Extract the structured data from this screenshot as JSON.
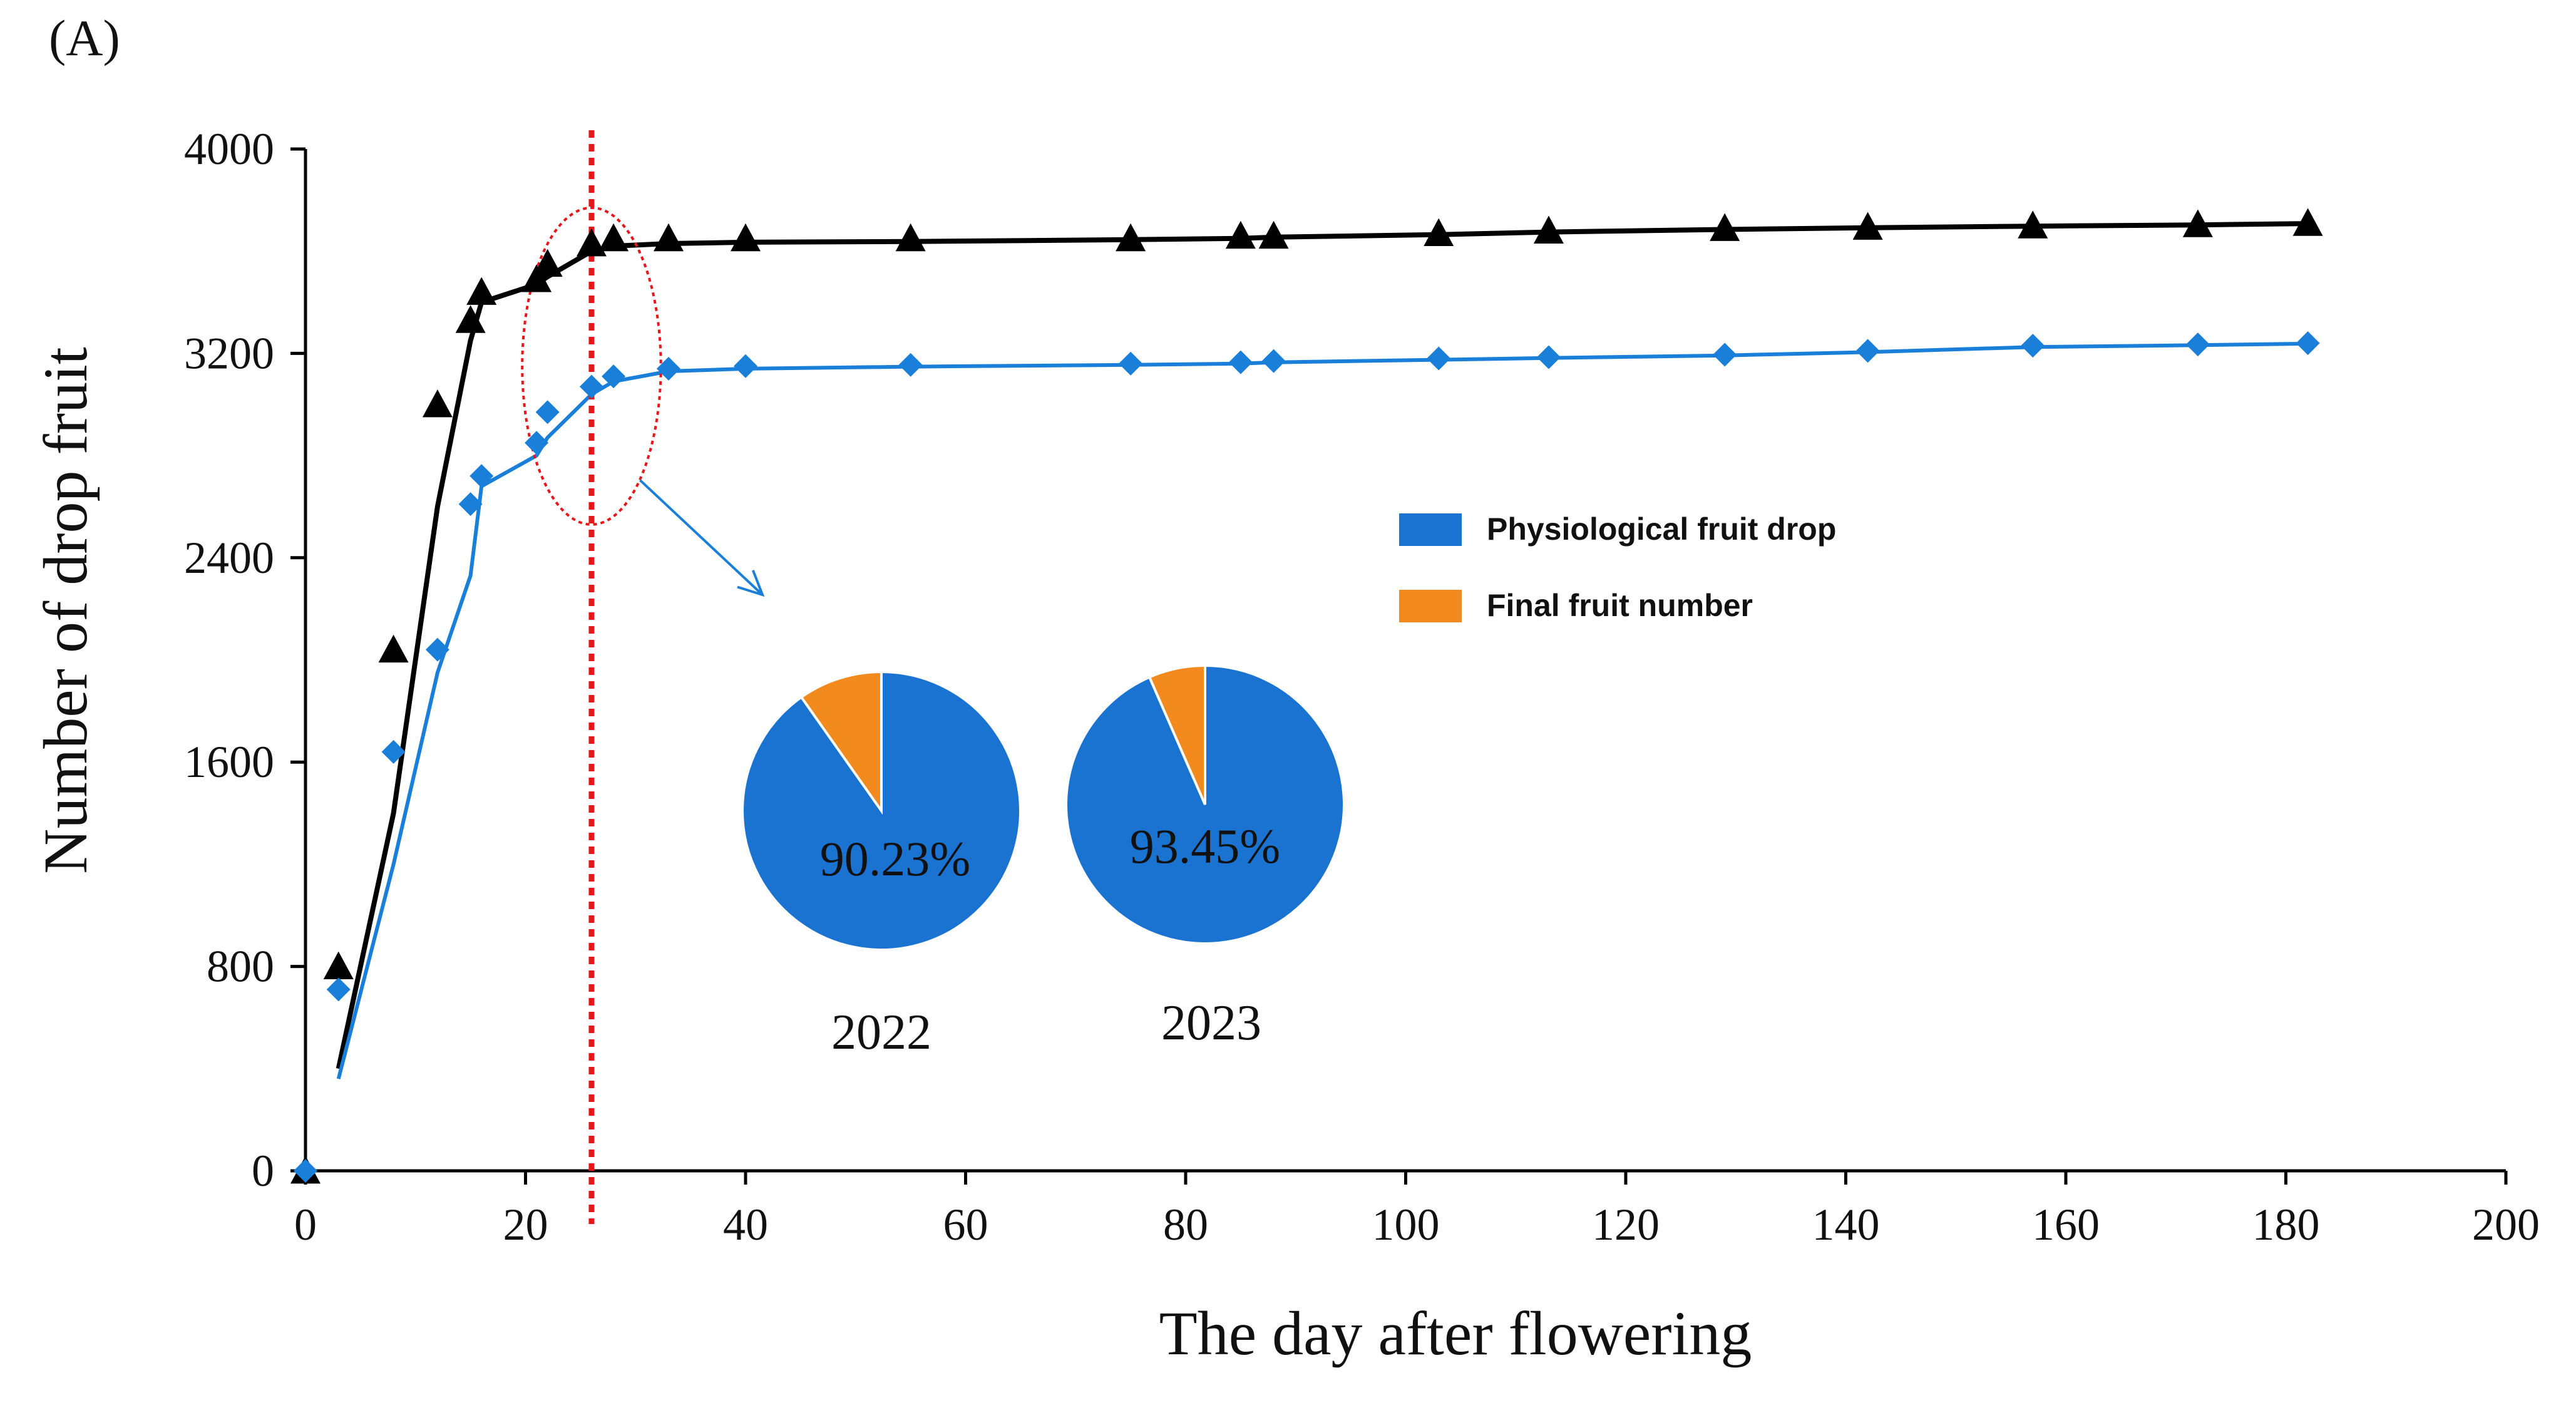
{
  "panel_label": "(A)",
  "colors": {
    "series_2023": "#000000",
    "series_2022": "#1a7fd8",
    "physiological": "#1a73d0",
    "final": "#f28a1e",
    "cutoff_line": "#e8161b"
  },
  "chart_data": {
    "type": "line",
    "title": "",
    "xlabel": "The day after flowering",
    "ylabel": "Number of drop fruit",
    "xlim": [
      0,
      200
    ],
    "ylim": [
      0,
      4000
    ],
    "xticks": [
      0,
      20,
      40,
      60,
      80,
      100,
      120,
      140,
      160,
      180,
      200
    ],
    "yticks": [
      0,
      800,
      1600,
      2400,
      3200,
      4000
    ],
    "grid": false,
    "cutoff_x": 26,
    "highlight_ellipse": {
      "x_center": 26,
      "y_center": 3150,
      "x_radius": 6.3,
      "y_radius": 620
    },
    "series": [
      {
        "name": "2023",
        "marker": "triangle",
        "color": "#000000",
        "x": [
          0,
          3,
          8,
          12,
          15,
          16,
          21,
          22,
          26,
          28,
          33,
          40,
          55,
          75,
          85,
          88,
          103,
          113,
          129,
          142,
          157,
          172,
          182
        ],
        "y": [
          0,
          800,
          2040,
          3000,
          3330,
          3440,
          3490,
          3550,
          3630,
          3650,
          3650,
          3650,
          3650,
          3650,
          3660,
          3660,
          3670,
          3680,
          3690,
          3695,
          3700,
          3705,
          3710
        ],
        "fit_x": [
          3,
          8,
          12,
          15,
          16,
          21,
          22,
          26,
          28,
          33,
          40,
          55,
          75,
          85,
          88,
          103,
          113,
          129,
          142,
          157,
          172,
          182
        ],
        "fit_y": [
          400,
          1400,
          2600,
          3250,
          3400,
          3470,
          3500,
          3600,
          3620,
          3630,
          3635,
          3638,
          3645,
          3650,
          3655,
          3665,
          3675,
          3685,
          3692,
          3698,
          3703,
          3708
        ]
      },
      {
        "name": "2022",
        "marker": "diamond",
        "color": "#1a7fd8",
        "x": [
          0,
          3,
          8,
          12,
          15,
          16,
          21,
          22,
          26,
          28,
          33,
          40,
          55,
          75,
          85,
          88,
          103,
          113,
          129,
          142,
          157,
          172,
          182
        ],
        "y": [
          0,
          710,
          1640,
          2040,
          2610,
          2720,
          2850,
          2970,
          3070,
          3110,
          3140,
          3150,
          3155,
          3160,
          3165,
          3170,
          3180,
          3185,
          3195,
          3210,
          3230,
          3235,
          3240
        ],
        "fit_x": [
          3,
          8,
          12,
          15,
          16,
          21,
          22,
          26,
          28,
          33,
          40,
          55,
          75,
          85,
          88,
          103,
          113,
          129,
          142,
          157,
          172,
          182
        ],
        "fit_y": [
          360,
          1200,
          1950,
          2330,
          2680,
          2800,
          2870,
          3040,
          3090,
          3130,
          3140,
          3148,
          3155,
          3160,
          3165,
          3175,
          3182,
          3192,
          3205,
          3225,
          3232,
          3238
        ]
      }
    ],
    "legend": {
      "position": "right-center",
      "items": [
        {
          "label": "Physiological fruit drop",
          "color": "#1a73d0"
        },
        {
          "label": "Final fruit number",
          "color": "#f28a1e"
        }
      ]
    },
    "inset_pies": [
      {
        "year_label": "2022",
        "percent_label": "90.23%",
        "slices": [
          {
            "label": "Physiological fruit drop",
            "value": 90.23,
            "color": "#1a73d0"
          },
          {
            "label": "Final fruit number",
            "value": 9.77,
            "color": "#f28a1e"
          }
        ]
      },
      {
        "year_label": "2023",
        "percent_label": "93.45%",
        "slices": [
          {
            "label": "Physiological fruit drop",
            "value": 93.45,
            "color": "#1a73d0"
          },
          {
            "label": "Final fruit number",
            "value": 6.55,
            "color": "#f28a1e"
          }
        ]
      }
    ]
  }
}
